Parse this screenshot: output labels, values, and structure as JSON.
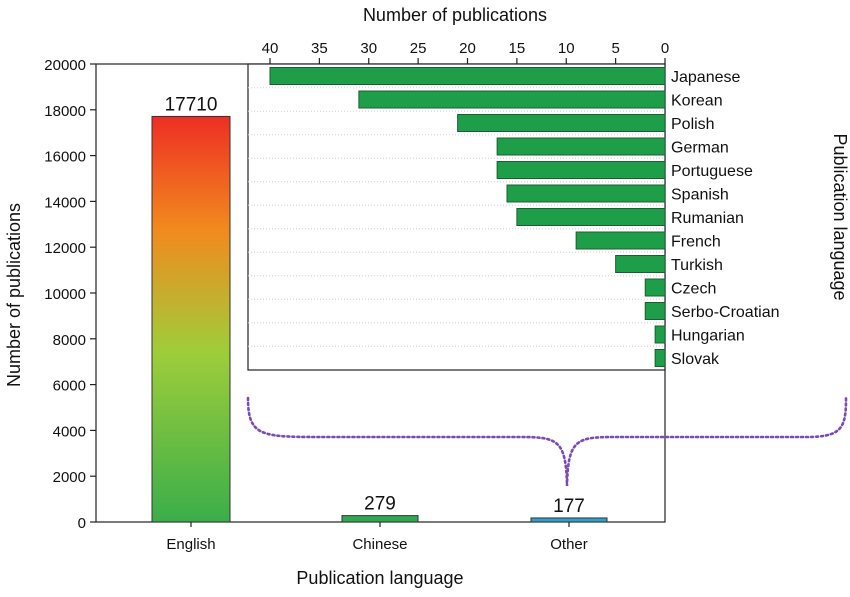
{
  "chart_data": [
    {
      "type": "bar",
      "title": "",
      "xlabel": "Publication language",
      "ylabel": "Number of publications",
      "ylim": [
        0,
        20000
      ],
      "yticks": [
        0,
        2000,
        4000,
        6000,
        8000,
        10000,
        12000,
        14000,
        16000,
        18000,
        20000
      ],
      "categories": [
        "English",
        "Chinese",
        "Other"
      ],
      "values": [
        17710,
        279,
        177
      ],
      "value_labels": [
        "17710",
        "279",
        "177"
      ],
      "colors": [
        "gradient-red-orange-green",
        "#2fa84f",
        "#2f9fcf"
      ],
      "grid": false,
      "legend": "none"
    },
    {
      "type": "bar",
      "orientation": "horizontal",
      "title": "",
      "xlabel": "Number of publications",
      "ylabel": "Publication language",
      "xlim": [
        0,
        40
      ],
      "x_reversed": true,
      "xticks": [
        40,
        35,
        30,
        25,
        20,
        15,
        10,
        5,
        0
      ],
      "categories": [
        "Japanese",
        "Korean",
        "Polish",
        "German",
        "Portuguese",
        "Spanish",
        "Rumanian",
        "French",
        "Turkish",
        "Czech",
        "Serbo-Croatian",
        "Hungarian",
        "Slovak"
      ],
      "values": [
        40,
        31,
        21,
        17,
        17,
        16,
        15,
        9,
        5,
        2,
        2,
        1,
        1
      ],
      "color": "#1f9e4a",
      "grid": true,
      "legend": "none"
    }
  ]
}
